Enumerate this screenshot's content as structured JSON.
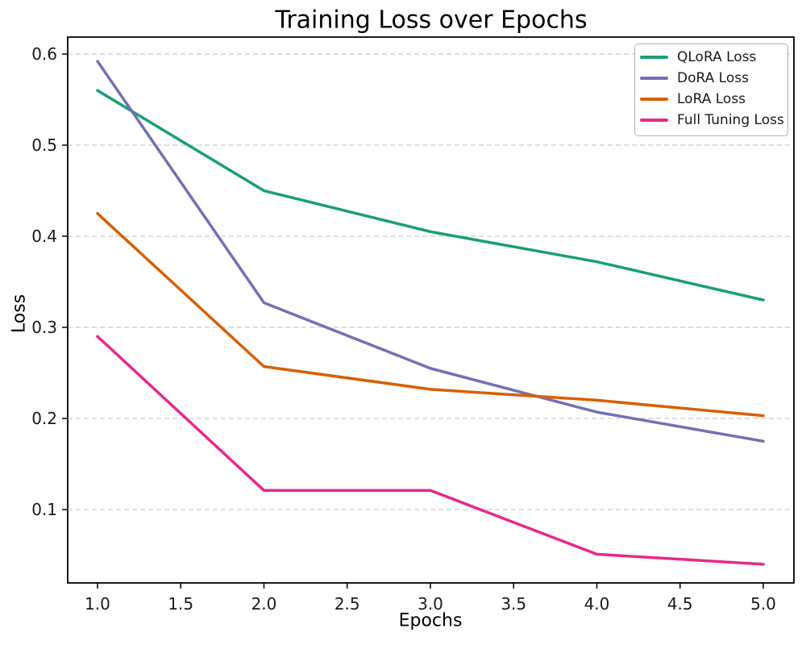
{
  "chart_data": {
    "type": "line",
    "title": "Training Loss over Epochs",
    "xlabel": "Epochs",
    "ylabel": "Loss",
    "x": [
      1,
      2,
      3,
      4,
      5
    ],
    "series": [
      {
        "name": "QLoRA Loss",
        "color": "#1b9e77",
        "values": [
          0.56,
          0.45,
          0.405,
          0.372,
          0.33
        ]
      },
      {
        "name": "DoRA Loss",
        "color": "#7570b3",
        "values": [
          0.592,
          0.327,
          0.255,
          0.207,
          0.175
        ]
      },
      {
        "name": "LoRA Loss",
        "color": "#d95f02",
        "values": [
          0.425,
          0.257,
          0.232,
          0.22,
          0.203
        ]
      },
      {
        "name": "Full Tuning Loss",
        "color": "#e7298a",
        "values": [
          0.29,
          0.121,
          0.121,
          0.051,
          0.04
        ]
      }
    ],
    "x_ticks": [
      "1.0",
      "1.5",
      "2.0",
      "2.5",
      "3.0",
      "3.5",
      "4.0",
      "4.5",
      "5.0"
    ],
    "y_ticks": [
      "0.1",
      "0.2",
      "0.3",
      "0.4",
      "0.5",
      "0.6"
    ],
    "xlim": [
      0.821,
      5.184
    ],
    "ylim": [
      0.0195,
      0.6186
    ],
    "grid": "horizontal-dashed",
    "grid_color": "#c9c9c9",
    "axis_color": "#000000",
    "legend_position": "upper right"
  }
}
